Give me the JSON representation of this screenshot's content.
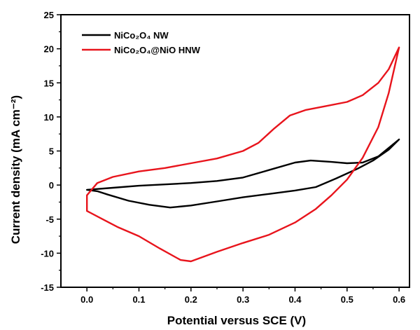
{
  "chart_data": {
    "type": "line",
    "xlabel": "Potential versus SCE (V)",
    "ylabel": "Current density (mA cm⁻²)",
    "xlim": [
      -0.05,
      0.62
    ],
    "ylim": [
      -15,
      25
    ],
    "xticks": [
      "0.0",
      "0.1",
      "0.2",
      "0.3",
      "0.4",
      "0.5",
      "0.6"
    ],
    "yticks": [
      "-15",
      "-10",
      "-5",
      "0",
      "5",
      "10",
      "15",
      "20",
      "25"
    ],
    "legend_position": "top-left",
    "grid": false,
    "series": [
      {
        "name": "NiCo₂O₄ NW",
        "color": "#000000",
        "points": [
          [
            0.0,
            -0.7
          ],
          [
            0.05,
            -0.4
          ],
          [
            0.1,
            -0.1
          ],
          [
            0.15,
            0.1
          ],
          [
            0.2,
            0.3
          ],
          [
            0.25,
            0.6
          ],
          [
            0.3,
            1.1
          ],
          [
            0.35,
            2.2
          ],
          [
            0.4,
            3.3
          ],
          [
            0.43,
            3.6
          ],
          [
            0.47,
            3.4
          ],
          [
            0.5,
            3.2
          ],
          [
            0.53,
            3.3
          ],
          [
            0.56,
            4.2
          ],
          [
            0.6,
            6.7
          ],
          [
            0.58,
            5.2
          ],
          [
            0.55,
            3.6
          ],
          [
            0.52,
            2.4
          ],
          [
            0.48,
            1.0
          ],
          [
            0.44,
            -0.3
          ],
          [
            0.4,
            -0.8
          ],
          [
            0.35,
            -1.3
          ],
          [
            0.3,
            -1.8
          ],
          [
            0.25,
            -2.4
          ],
          [
            0.2,
            -3.0
          ],
          [
            0.16,
            -3.3
          ],
          [
            0.12,
            -2.9
          ],
          [
            0.08,
            -2.3
          ],
          [
            0.04,
            -1.4
          ],
          [
            0.02,
            -0.9
          ],
          [
            0.0,
            -0.7
          ]
        ]
      },
      {
        "name": "NiCo₂O₄@NiO HNW",
        "color": "#e8141c",
        "points": [
          [
            0.0,
            -3.8
          ],
          [
            0.0,
            -1.5
          ],
          [
            0.02,
            0.3
          ],
          [
            0.05,
            1.2
          ],
          [
            0.1,
            2.0
          ],
          [
            0.15,
            2.5
          ],
          [
            0.2,
            3.2
          ],
          [
            0.25,
            3.9
          ],
          [
            0.3,
            5.0
          ],
          [
            0.33,
            6.2
          ],
          [
            0.36,
            8.3
          ],
          [
            0.39,
            10.2
          ],
          [
            0.42,
            11.0
          ],
          [
            0.46,
            11.6
          ],
          [
            0.5,
            12.2
          ],
          [
            0.53,
            13.2
          ],
          [
            0.56,
            15.0
          ],
          [
            0.58,
            17.0
          ],
          [
            0.6,
            20.2
          ],
          [
            0.58,
            13.5
          ],
          [
            0.56,
            8.5
          ],
          [
            0.53,
            4.0
          ],
          [
            0.5,
            0.8
          ],
          [
            0.47,
            -1.5
          ],
          [
            0.44,
            -3.5
          ],
          [
            0.4,
            -5.5
          ],
          [
            0.35,
            -7.3
          ],
          [
            0.3,
            -8.5
          ],
          [
            0.25,
            -9.8
          ],
          [
            0.2,
            -11.2
          ],
          [
            0.18,
            -11.0
          ],
          [
            0.14,
            -9.3
          ],
          [
            0.1,
            -7.5
          ],
          [
            0.06,
            -6.2
          ],
          [
            0.03,
            -5.0
          ],
          [
            0.0,
            -3.8
          ]
        ]
      }
    ]
  }
}
